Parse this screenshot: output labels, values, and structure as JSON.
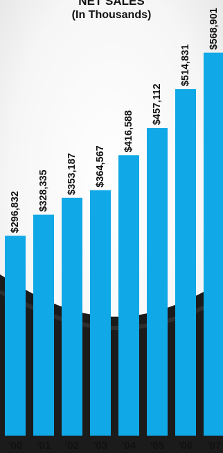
{
  "chart_data": {
    "type": "bar",
    "title": "NET SALES",
    "subtitle": "(In Thousands)",
    "categories": [
      "'00",
      "'01",
      "'02",
      "'03",
      "'04",
      "'05",
      "'06",
      "'07"
    ],
    "values": [
      296832,
      328335,
      353187,
      364567,
      416588,
      457112,
      514831,
      568901
    ],
    "value_labels": [
      "$296,832",
      "$328,335",
      "$353,187",
      "$364,567",
      "$416,588",
      "$457,112",
      "$514,831",
      "$568,901"
    ],
    "xlabel": "",
    "ylabel": "",
    "ylim": [
      0,
      600000
    ],
    "grid": false,
    "legend": "none",
    "bar_color": "#10A8E6"
  }
}
